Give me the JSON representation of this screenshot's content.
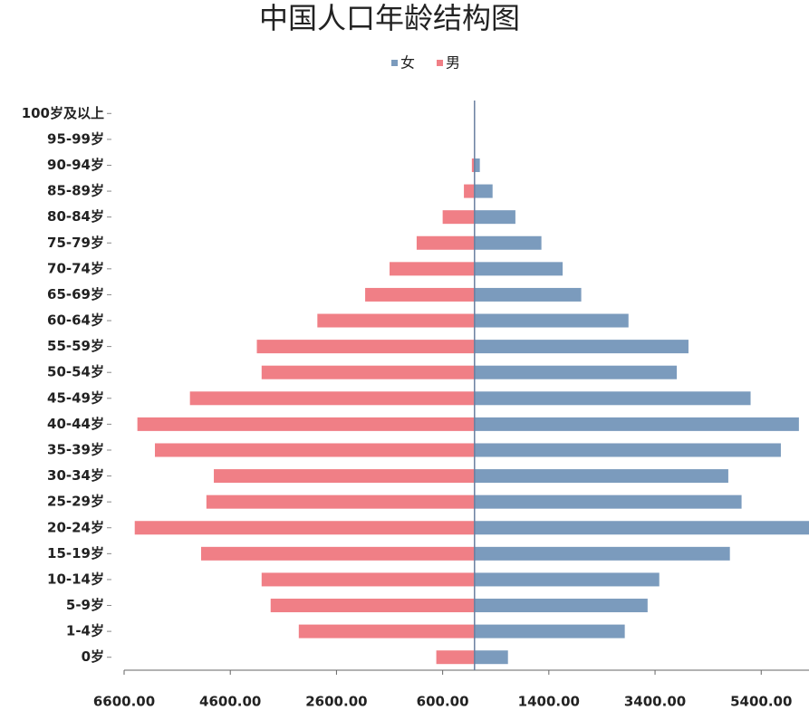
{
  "chart_data": {
    "type": "bar",
    "orientation": "horizontal",
    "title": "中国人口年龄结构图",
    "categories": [
      "100岁及以上",
      "95-99岁",
      "90-94岁",
      "85-89岁",
      "80-84岁",
      "75-79岁",
      "70-74岁",
      "65-69岁",
      "60-64岁",
      "55-59岁",
      "50-54岁",
      "45-49岁",
      "40-44岁",
      "35-39岁",
      "30-34岁",
      "25-29岁",
      "20-24岁",
      "15-19岁",
      "10-14岁",
      "5-9岁",
      "1-4岁",
      "0岁"
    ],
    "series": [
      {
        "name": "女",
        "color": "#7b9bbd",
        "values": [
          0,
          0,
          100,
          340,
          770,
          1260,
          1660,
          2010,
          2900,
          4030,
          3810,
          5200,
          6110,
          5770,
          4780,
          5030,
          6300,
          4810,
          3480,
          3260,
          2830,
          630
        ]
      },
      {
        "name": "男",
        "color": "#f07f86",
        "values": [
          0,
          0,
          -50,
          -200,
          -600,
          -1090,
          -1600,
          -2060,
          -2960,
          -4100,
          -4010,
          -5360,
          -6350,
          -6020,
          -4910,
          -5050,
          -6400,
          -5150,
          -4010,
          -3840,
          -3310,
          -720
        ]
      }
    ],
    "xlim": [
      -6600,
      6300
    ],
    "xticks": [
      {
        "value": -6600,
        "label": "6600.00"
      },
      {
        "value": -4600,
        "label": "4600.00"
      },
      {
        "value": -2600,
        "label": "2600.00"
      },
      {
        "value": -600,
        "label": "600.00"
      },
      {
        "value": 1400,
        "label": "1400.00"
      },
      {
        "value": 3400,
        "label": "3400.00"
      },
      {
        "value": 5400,
        "label": "5400.00"
      }
    ],
    "legend": "top"
  }
}
